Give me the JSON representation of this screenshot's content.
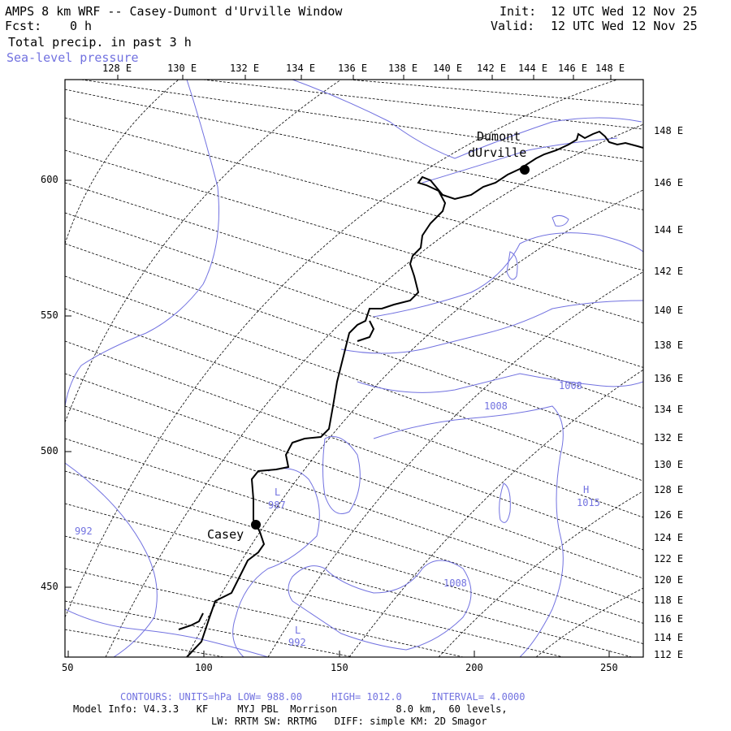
{
  "header": {
    "title": "AMPS 8 km WRF -- Casey-Dumont d'Urville Window",
    "fcst_label": "Fcst:",
    "fcst_value": "0 h",
    "field1": "Total precip. in past 3 h",
    "field2": "Sea-level pressure",
    "init_label": "Init:",
    "init_value": "12 UTC Wed 12 Nov 25",
    "valid_label": "Valid:",
    "valid_value": "12 UTC Wed 12 Nov 25"
  },
  "axes": {
    "top_lon_labels": [
      "128 E",
      "130 E",
      "132 E",
      "134 E",
      "136 E",
      "138 E",
      "140 E",
      "142 E",
      "144 E",
      "146 E",
      "148 E"
    ],
    "right_lon_labels": [
      "148 E",
      "146 E",
      "144 E",
      "142 E",
      "140 E",
      "138 E",
      "136 E",
      "134 E",
      "132 E",
      "130 E",
      "128 E",
      "126 E",
      "124 E",
      "122 E",
      "120 E",
      "118 E",
      "116 E",
      "114 E",
      "112 E"
    ],
    "left_y_labels": [
      "600",
      "550",
      "500",
      "450"
    ],
    "bottom_x_labels": [
      "50",
      "100",
      "150",
      "200",
      "250"
    ]
  },
  "places": {
    "dumont_line1": "Dumont",
    "dumont_line2": "dUrville",
    "casey": "Casey"
  },
  "contour_labels": {
    "l1": "L",
    "v1": "987",
    "l2": "L",
    "v2": "992",
    "v3": "992",
    "h1": "H",
    "v4": "1015",
    "v5": "1008",
    "v6": "1008",
    "v7": "1008"
  },
  "footer": {
    "contours_line": "CONTOURS: UNITS=hPa LOW= 988.00     HIGH= 1012.0     INTERVAL= 4.0000",
    "model_info": "Model Info: V4.3.3   KF     MYJ PBL  Morrison          8.0 km,  60 levels,",
    "physics": "LW: RRTM SW: RRTMG   DIFF: simple KM: 2D Smagor"
  },
  "colors": {
    "contour": "#7272e0",
    "coast": "#000000",
    "grid": "#000000"
  }
}
